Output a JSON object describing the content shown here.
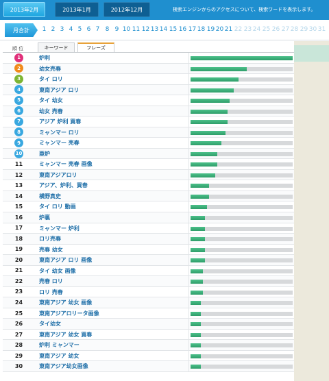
{
  "top_tabs": [
    {
      "label": "2013年2月",
      "state": "active"
    },
    {
      "label": "2013年1月",
      "state": "inactive"
    },
    {
      "label": "2012年12月",
      "state": "inactive"
    }
  ],
  "top_note": "検索エンジンからのアクセスについて、検索ワードを表示します。",
  "month_total_label": "月合計",
  "days": [
    "1",
    "2",
    "3",
    "4",
    "5",
    "6",
    "7",
    "8",
    "9",
    "10",
    "11",
    "12",
    "13",
    "14",
    "15",
    "16",
    "17",
    "18",
    "19",
    "20",
    "21",
    "22",
    "23",
    "24",
    "25",
    "26",
    "27",
    "28",
    "29",
    "30",
    "31"
  ],
  "days_enabled_through": 21,
  "table_header": {
    "rank": "順 位",
    "tab_keyword": "キーワード",
    "tab_phrase": "フレーズ"
  },
  "rows": [
    {
      "rank": "1",
      "keyword": "炉利",
      "share": 1.0
    },
    {
      "rank": "2",
      "keyword": "幼女売春",
      "share": 0.55
    },
    {
      "rank": "3",
      "keyword": "タイ ロリ",
      "share": 0.47
    },
    {
      "rank": "4",
      "keyword": "東南アジア ロリ",
      "share": 0.42
    },
    {
      "rank": "5",
      "keyword": "タイ 幼女",
      "share": 0.38
    },
    {
      "rank": "6",
      "keyword": "幼女 売春",
      "share": 0.36
    },
    {
      "rank": "7",
      "keyword": "アジア 炉利 買春",
      "share": 0.36
    },
    {
      "rank": "8",
      "keyword": "ミャンマー ロリ",
      "share": 0.34
    },
    {
      "rank": "9",
      "keyword": "ミャンマー 売春",
      "share": 0.3
    },
    {
      "rank": "10",
      "keyword": "亜炉",
      "share": 0.26
    },
    {
      "rank": "11",
      "keyword": "ミャンマー 売春 画像",
      "share": 0.26
    },
    {
      "rank": "12",
      "keyword": "東南アジアロリ",
      "share": 0.24
    },
    {
      "rank": "13",
      "keyword": "アジア、炉利、買春",
      "share": 0.18
    },
    {
      "rank": "14",
      "keyword": "横野真史",
      "share": 0.18
    },
    {
      "rank": "15",
      "keyword": "タイ ロリ 動画",
      "share": 0.16
    },
    {
      "rank": "16",
      "keyword": "炉裏",
      "share": 0.14
    },
    {
      "rank": "17",
      "keyword": "ミャンマー 炉利",
      "share": 0.14
    },
    {
      "rank": "18",
      "keyword": "ロリ売春",
      "share": 0.14
    },
    {
      "rank": "19",
      "keyword": "売春 幼女",
      "share": 0.14
    },
    {
      "rank": "20",
      "keyword": "東南アジア ロリ 画像",
      "share": 0.14
    },
    {
      "rank": "21",
      "keyword": "タイ 幼女 画像",
      "share": 0.12
    },
    {
      "rank": "22",
      "keyword": "売春 ロリ",
      "share": 0.12
    },
    {
      "rank": "23",
      "keyword": "ロリ 売春",
      "share": 0.12
    },
    {
      "rank": "24",
      "keyword": "東南アジア 幼女 画像",
      "share": 0.1
    },
    {
      "rank": "25",
      "keyword": "東南アジアロリータ画像",
      "share": 0.1
    },
    {
      "rank": "26",
      "keyword": "タイ幼女",
      "share": 0.1
    },
    {
      "rank": "27",
      "keyword": "東南アジア 幼女 買春",
      "share": 0.1
    },
    {
      "rank": "28",
      "keyword": "炉利 ミャンマー",
      "share": 0.1
    },
    {
      "rank": "29",
      "keyword": "東南アジア 幼女",
      "share": 0.1
    },
    {
      "rank": "30",
      "keyword": "東南アジア幼女画像",
      "share": 0.1
    }
  ],
  "medal_colors": [
    "#e0307a",
    "#f08a1a",
    "#7db534",
    "#39a8e0",
    "#39a8e0",
    "#39a8e0",
    "#39a8e0",
    "#39a8e0",
    "#39a8e0",
    "#39a8e0"
  ]
}
